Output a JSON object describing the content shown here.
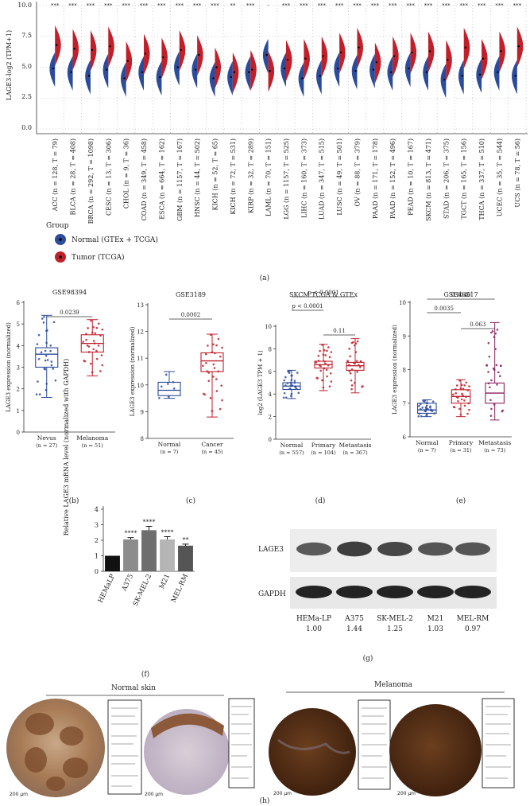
{
  "panel_a": {
    "ylabel": "LAGE3-log2 (TPM+1)",
    "yticks": [
      "10.0",
      "7.5",
      "5.0",
      "2.5",
      "0.0"
    ],
    "caption": "(a)",
    "legend": {
      "title": "Group",
      "normal": "Normal (GTEx + TCGA)",
      "tumor": "Tumor (TCGA)",
      "colors": {
        "normal": "#2b4b9b",
        "tumor": "#c0202a"
      }
    },
    "sig": [
      "***",
      "***",
      "***",
      "***",
      "***",
      "***",
      "***",
      "***",
      "***",
      "***",
      "**",
      "***",
      "-",
      "***",
      "***",
      "***",
      "***",
      "***",
      "***",
      "***",
      "***",
      "***",
      "***",
      "***",
      "***",
      "***",
      "***"
    ],
    "groups": [
      {
        "label": "ACC (n = 128, T = 79)",
        "n": 4.9,
        "t": 6.8
      },
      {
        "label": "BLCA (n = 28, T = 408)",
        "n": 4.6,
        "t": 6.5
      },
      {
        "label": "BRCA (n = 292, T = 1098)",
        "n": 4.3,
        "t": 6.4
      },
      {
        "label": "CESC (n = 13, T = 306)",
        "n": 4.8,
        "t": 6.7
      },
      {
        "label": "CHOL (n = 9, T = 36)",
        "n": 4.1,
        "t": 5.5
      },
      {
        "label": "COAD (n = 349, T = 458)",
        "n": 4.6,
        "t": 6.1
      },
      {
        "label": "ESCA (n = 664, T = 162)",
        "n": 4.2,
        "t": 5.8
      },
      {
        "label": "GBM (n = 1157, T = 167)",
        "n": 5.0,
        "t": 6.4
      },
      {
        "label": "HNSC (n = 44, T = 502)",
        "n": 4.8,
        "t": 6.0
      },
      {
        "label": "KICH (n = 52, T = 65)",
        "n": 4.1,
        "t": 5.0
      },
      {
        "label": "KICH (n = 72, T = 531)",
        "n": 4.2,
        "t": 4.6
      },
      {
        "label": "KIRP (n = 32, T = 289)",
        "n": 4.6,
        "t": 4.8
      },
      {
        "label": "LAML (n = 70, T = 151)",
        "n": 6.0,
        "t": 4.7
      },
      {
        "label": "LGG (n = 1157, T = 525)",
        "n": 4.9,
        "t": 5.6
      },
      {
        "label": "LIHC (n = 160, T = 373)",
        "n": 4.1,
        "t": 5.7
      },
      {
        "label": "LUAD (n = 347, T = 515)",
        "n": 4.3,
        "t": 5.9
      },
      {
        "label": "LUSC (n = 49, T = 501)",
        "n": 4.9,
        "t": 6.2
      },
      {
        "label": "OV (n = 88, T = 379)",
        "n": 4.7,
        "t": 6.6
      },
      {
        "label": "PAAD (n = 171, T = 178)",
        "n": 4.8,
        "t": 5.4
      },
      {
        "label": "PAAD (n = 152, T = 496)",
        "n": 4.6,
        "t": 5.9
      },
      {
        "label": "PEAD (n = 10, T = 167)",
        "n": 4.9,
        "t": 6.2
      },
      {
        "label": "SKCM (n = 813, T = 471)",
        "n": 4.6,
        "t": 6.3
      },
      {
        "label": "STAD (n = 206, T = 375)",
        "n": 4.0,
        "t": 5.6
      },
      {
        "label": "TGCT (n = 165, T = 156)",
        "n": 4.3,
        "t": 6.6
      },
      {
        "label": "THCA (n = 337, T = 510)",
        "n": 4.4,
        "t": 5.7
      },
      {
        "label": "UCEC (n = 35, T = 544)",
        "n": 4.6,
        "t": 6.3
      },
      {
        "label": "UCS (n = 78, T = 56)",
        "n": 4.3,
        "t": 6.7
      }
    ]
  },
  "panel_b": {
    "title": "GSE98394",
    "ylabel": "LAGE3 expression (normalized)",
    "yticks": [
      "0",
      "1",
      "2",
      "3",
      "4",
      "5",
      "6"
    ],
    "pval": "0.0239",
    "cats": [
      {
        "name": "Nevus",
        "n": "(n = 27)",
        "q1": 3.0,
        "med": 3.6,
        "q3": 3.9,
        "lo": 1.6,
        "hi": 5.4
      },
      {
        "name": "Melanoma",
        "n": "(n = 51)",
        "q1": 3.7,
        "med": 4.1,
        "q3": 4.5,
        "lo": 2.6,
        "hi": 5.2
      }
    ],
    "caption": "(b)"
  },
  "panel_c": {
    "title": "GSE3189",
    "ylabel": "LAGE3 expression (normalized)",
    "yticks": [
      "8",
      "9",
      "10",
      "11",
      "12",
      "13"
    ],
    "pval": "0.0002",
    "cats": [
      {
        "name": "Normal",
        "n": "(n = 7)",
        "q1": 9.6,
        "med": 9.8,
        "q3": 10.1,
        "lo": 9.5,
        "hi": 10.5
      },
      {
        "name": "Cancer",
        "n": "(n = 45)",
        "q1": 10.5,
        "med": 10.9,
        "q3": 11.2,
        "lo": 8.8,
        "hi": 11.9
      }
    ],
    "caption": "(c)"
  },
  "panel_d": {
    "title": "SKCM TCGA & GTEx",
    "ylabel": "log2 (LAGE3 TPM + 1)",
    "yticks": [
      "0",
      "2",
      "4",
      "6",
      "8",
      "10"
    ],
    "pvals": [
      "p < 0.0001",
      "p < 0.0001",
      "0.11"
    ],
    "cats": [
      {
        "name": "Normal",
        "n": "(n = 557)",
        "q1": 4.4,
        "med": 4.7,
        "q3": 5.0,
        "lo": 3.6,
        "hi": 6.1
      },
      {
        "name": "Primary",
        "n": "(n = 104)",
        "q1": 6.3,
        "med": 6.6,
        "q3": 6.9,
        "lo": 4.3,
        "hi": 8.4
      },
      {
        "name": "Metastasis",
        "n": "(n = 367)",
        "q1": 6.1,
        "med": 6.5,
        "q3": 6.8,
        "lo": 4.1,
        "hi": 8.9
      }
    ],
    "caption": "(d)"
  },
  "panel_e": {
    "title": "GSE46517",
    "ylabel": "LAGE3 expression (normalized)",
    "yticks": [
      "6",
      "7",
      "8",
      "9",
      "10"
    ],
    "pvals": [
      "0.0040",
      "0.0035",
      "0.063"
    ],
    "cats": [
      {
        "name": "Normal",
        "n": "(n = 7)",
        "q1": 6.7,
        "med": 6.8,
        "q3": 7.0,
        "lo": 6.6,
        "hi": 7.1
      },
      {
        "name": "Primary",
        "n": "(n = 31)",
        "q1": 7.0,
        "med": 7.2,
        "q3": 7.4,
        "lo": 6.6,
        "hi": 7.7
      },
      {
        "name": "Metastasis",
        "n": "(n = 73)",
        "q1": 7.0,
        "med": 7.3,
        "q3": 7.6,
        "lo": 6.5,
        "hi": 9.4
      }
    ],
    "caption": "(e)"
  },
  "panel_f": {
    "ylabel": "Relative LAGE3 mRNA level (normalized with GAPDH)",
    "yticks": [
      "0",
      "1",
      "2",
      "3",
      "4"
    ],
    "bars": [
      {
        "name": "HEMaLP",
        "v": 1.0,
        "err": 0.0,
        "sig": "",
        "color": "#111111"
      },
      {
        "name": "A375",
        "v": 2.05,
        "err": 0.12,
        "sig": "****",
        "color": "#8c8c8c"
      },
      {
        "name": "SK-MEL-2",
        "v": 2.65,
        "err": 0.25,
        "sig": "****",
        "color": "#6e6e6e"
      },
      {
        "name": "M21",
        "v": 2.05,
        "err": 0.18,
        "sig": "****",
        "color": "#b5b5b5"
      },
      {
        "name": "MEL-RM",
        "v": 1.65,
        "err": 0.1,
        "sig": "**",
        "color": "#555555"
      }
    ],
    "caption": "(f)"
  },
  "panel_g": {
    "rows": [
      "LAGE3",
      "GAPDH"
    ],
    "lanes": [
      {
        "name": "HEMa-LP",
        "val": "1.00"
      },
      {
        "name": "A375",
        "val": "1.44"
      },
      {
        "name": "SK-MEL-2",
        "val": "1.25"
      },
      {
        "name": "M21",
        "val": "1.03"
      },
      {
        "name": "MEL-RM",
        "val": "0.97"
      }
    ],
    "caption": "(g)"
  },
  "panel_h": {
    "normal_title": "Normal skin",
    "melanoma_title": "Melanoma",
    "scale1": "200 µm",
    "scale2": "200 µm",
    "scale3": "200 µm",
    "scale4": "200 µm",
    "caption": "(h)"
  }
}
